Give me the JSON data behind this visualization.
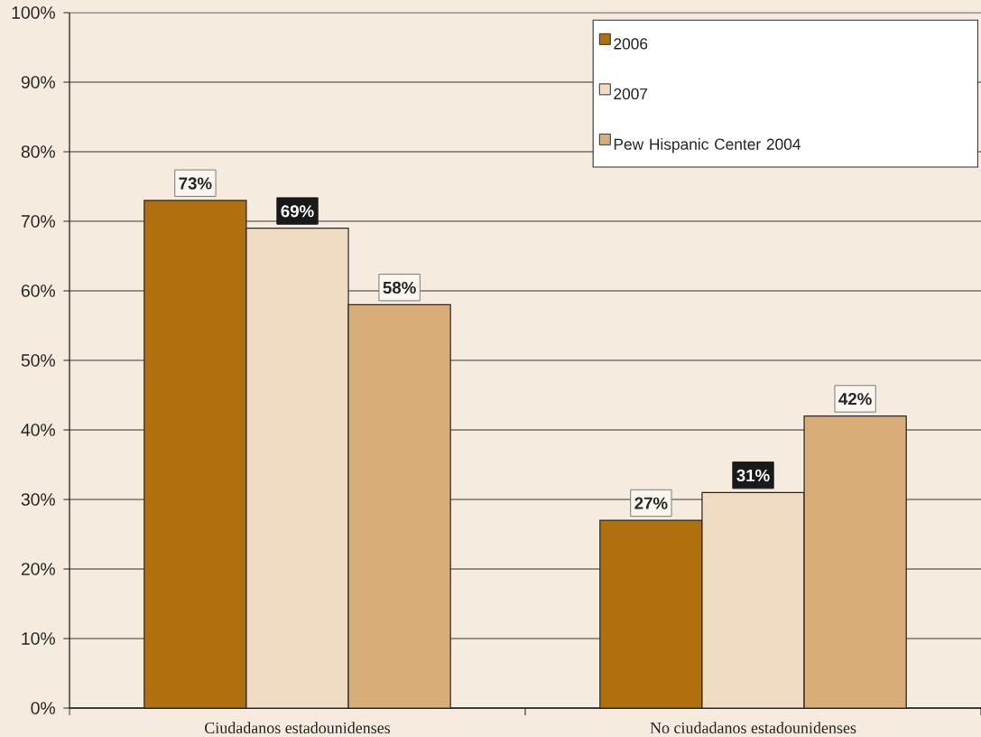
{
  "chart_data": {
    "type": "bar",
    "categories": [
      "Ciudadanos estadounidenses",
      "No ciudadanos estadounidenses"
    ],
    "series": [
      {
        "name": "2006",
        "color": "#B0700E",
        "values": [
          73,
          27
        ],
        "value_labels": [
          "73%",
          "27%"
        ]
      },
      {
        "name": "2007",
        "color": "#EFDBC2",
        "values": [
          69,
          31
        ],
        "value_labels": [
          "69%",
          "31%"
        ]
      },
      {
        "name": "Pew Hispanic Center 2004",
        "color": "#D8AD78",
        "values": [
          58,
          42
        ],
        "value_labels": [
          "58%",
          "42%"
        ]
      }
    ],
    "ylim": [
      0,
      100
    ],
    "yticks": [
      {
        "value": 0,
        "label": "0%"
      },
      {
        "value": 10,
        "label": "10%"
      },
      {
        "value": 20,
        "label": "20%"
      },
      {
        "value": 30,
        "label": "30%"
      },
      {
        "value": 40,
        "label": "40%"
      },
      {
        "value": 50,
        "label": "50%"
      },
      {
        "value": 60,
        "label": "60%"
      },
      {
        "value": 70,
        "label": "70%"
      },
      {
        "value": 80,
        "label": "80%"
      },
      {
        "value": 90,
        "label": "90%"
      },
      {
        "value": 100,
        "label": "100%"
      }
    ],
    "grid": "y",
    "legend": "top right"
  }
}
